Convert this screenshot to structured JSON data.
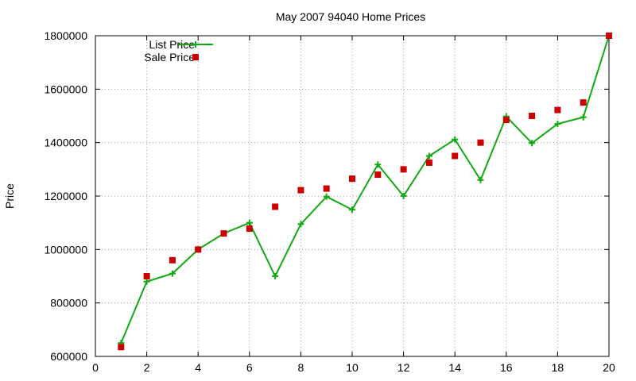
{
  "chart_data": {
    "type": "line",
    "title": "May 2007 94040 Home Prices",
    "xlabel": "",
    "ylabel": "Price",
    "xlim": [
      0,
      20
    ],
    "ylim": [
      600000,
      1800000
    ],
    "x_ticks": [
      "0",
      "2",
      "4",
      "6",
      "8",
      "10",
      "12",
      "14",
      "16",
      "18",
      "20"
    ],
    "y_ticks": [
      "600000",
      "800000",
      "1000000",
      "1200000",
      "1400000",
      "1600000",
      "1800000"
    ],
    "grid": true,
    "legend_position": "top-left",
    "series": [
      {
        "name": "List Price",
        "style": "line-with-plus-markers",
        "color": "#11aa11",
        "x": [
          1,
          2,
          3,
          4,
          5,
          6,
          7,
          8,
          9,
          10,
          11,
          12,
          13,
          14,
          15,
          16,
          17,
          18,
          19,
          20
        ],
        "values": [
          650000,
          880000,
          910000,
          1000000,
          1060000,
          1100000,
          900000,
          1095000,
          1198000,
          1149000,
          1318000,
          1200000,
          1350000,
          1412000,
          1260000,
          1498000,
          1398000,
          1470000,
          1495000,
          1800000
        ]
      },
      {
        "name": "Sale Price",
        "style": "square-markers",
        "color": "#cc0000",
        "x": [
          1,
          2,
          3,
          4,
          5,
          6,
          7,
          8,
          9,
          10,
          11,
          12,
          13,
          14,
          15,
          16,
          17,
          18,
          19,
          20
        ],
        "values": [
          635000,
          900000,
          960000,
          1000000,
          1060000,
          1078000,
          1160000,
          1222000,
          1228000,
          1265000,
          1280000,
          1300000,
          1325000,
          1350000,
          1400000,
          1485000,
          1500000,
          1522000,
          1550000,
          1800000
        ]
      }
    ]
  }
}
